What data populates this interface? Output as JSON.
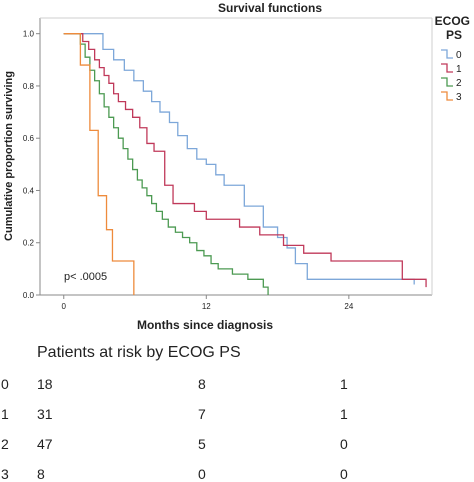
{
  "chart_data": {
    "type": "line",
    "title": "Survival functions",
    "xlabel": "Months since diagnosis",
    "ylabel": "Cumulative proportion surviving",
    "xlim": [
      -2,
      31
    ],
    "ylim": [
      0,
      1.06
    ],
    "x_ticks": [
      "0",
      "12",
      "24"
    ],
    "x_tick_values": [
      0,
      12,
      24
    ],
    "y_ticks": [
      "0.0",
      "0.2",
      "0.4",
      "0.6",
      "0.8",
      "1.0"
    ],
    "y_tick_values": [
      0,
      0.2,
      0.4,
      0.6,
      0.8,
      1.0
    ],
    "grid": false,
    "legend_title": "ECOG PS",
    "legend_position": "right",
    "annotation": "p< .0005",
    "series": [
      {
        "name": "0",
        "color": "#7da7d9",
        "x": [
          0,
          1.5,
          3.3,
          4.2,
          5.1,
          5.9,
          6.7,
          7.4,
          8.1,
          8.9,
          9.6,
          10.4,
          11.2,
          12.0,
          12.8,
          13.5,
          15.2,
          16.8,
          18.0,
          18.8,
          19.5,
          20.5,
          29.5
        ],
        "y": [
          1.0,
          1.0,
          0.94,
          0.9,
          0.86,
          0.82,
          0.78,
          0.74,
          0.7,
          0.66,
          0.61,
          0.56,
          0.52,
          0.5,
          0.46,
          0.42,
          0.34,
          0.26,
          0.22,
          0.18,
          0.12,
          0.06,
          0.04
        ]
      },
      {
        "name": "1",
        "color": "#c0395a",
        "x": [
          0,
          1.6,
          2.1,
          2.6,
          3.0,
          3.4,
          3.8,
          4.2,
          4.6,
          5.2,
          5.8,
          6.4,
          7.0,
          7.6,
          8.5,
          9.2,
          11.0,
          12.0,
          14.8,
          16.5,
          18.5,
          20.2,
          22.5,
          28.5,
          30.5
        ],
        "y": [
          1.0,
          0.97,
          0.94,
          0.9,
          0.87,
          0.84,
          0.81,
          0.77,
          0.74,
          0.71,
          0.68,
          0.64,
          0.58,
          0.55,
          0.42,
          0.35,
          0.32,
          0.29,
          0.26,
          0.23,
          0.19,
          0.16,
          0.13,
          0.06,
          0.03
        ]
      },
      {
        "name": "2",
        "color": "#4c9a52",
        "x": [
          0,
          1.4,
          1.8,
          2.2,
          2.6,
          3.0,
          3.4,
          3.8,
          4.2,
          4.6,
          5.0,
          5.4,
          5.8,
          6.2,
          6.6,
          7.0,
          7.4,
          7.8,
          8.3,
          8.8,
          9.4,
          10.0,
          10.6,
          11.2,
          11.8,
          12.4,
          13.0,
          14.2,
          15.5,
          16.8,
          17.2
        ],
        "y": [
          1.0,
          0.96,
          0.91,
          0.86,
          0.82,
          0.77,
          0.72,
          0.68,
          0.64,
          0.6,
          0.56,
          0.52,
          0.48,
          0.44,
          0.41,
          0.38,
          0.35,
          0.32,
          0.29,
          0.26,
          0.24,
          0.22,
          0.2,
          0.17,
          0.15,
          0.12,
          0.1,
          0.08,
          0.06,
          0.03,
          0.0
        ]
      },
      {
        "name": "3",
        "color": "#ee8b3c",
        "x": [
          0,
          1.4,
          2.2,
          2.9,
          3.6,
          4.1,
          5.4,
          5.9
        ],
        "y": [
          1.0,
          0.88,
          0.63,
          0.38,
          0.25,
          0.13,
          0.13,
          0.0
        ]
      }
    ]
  },
  "risk_table": {
    "title": "Patients at risk by ECOG PS",
    "rows": [
      {
        "label": "0",
        "values": [
          "18",
          "8",
          "1"
        ]
      },
      {
        "label": "1",
        "values": [
          "31",
          "7",
          "1"
        ]
      },
      {
        "label": "2",
        "values": [
          "47",
          "5",
          "0"
        ]
      },
      {
        "label": "3",
        "values": [
          "8",
          "0",
          "0"
        ]
      }
    ]
  }
}
